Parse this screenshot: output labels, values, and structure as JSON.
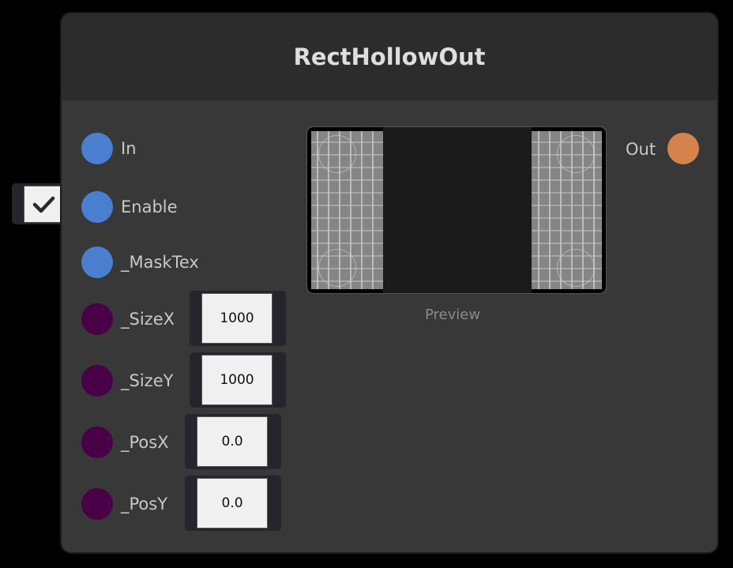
{
  "node": {
    "title": "RectHollowOut",
    "preview_label": "Preview"
  },
  "inputs": [
    {
      "label": "In",
      "color": "#4a7fcf"
    },
    {
      "label": "Enable",
      "color": "#4a7fcf",
      "checked": true
    },
    {
      "label": "_MaskTex",
      "color": "#4a7fcf"
    },
    {
      "label": "_SizeX",
      "color": "#4a0047",
      "value": "1000"
    },
    {
      "label": "_SizeY",
      "color": "#4a0047",
      "value": "1000"
    },
    {
      "label": "_PosX",
      "color": "#4a0047",
      "value": "0.0"
    },
    {
      "label": "_PosY",
      "color": "#4a0047",
      "value": "0.0"
    }
  ],
  "outputs": [
    {
      "label": "Out",
      "color": "#d4834c"
    }
  ],
  "icons": {
    "checkbox": "check-icon"
  }
}
